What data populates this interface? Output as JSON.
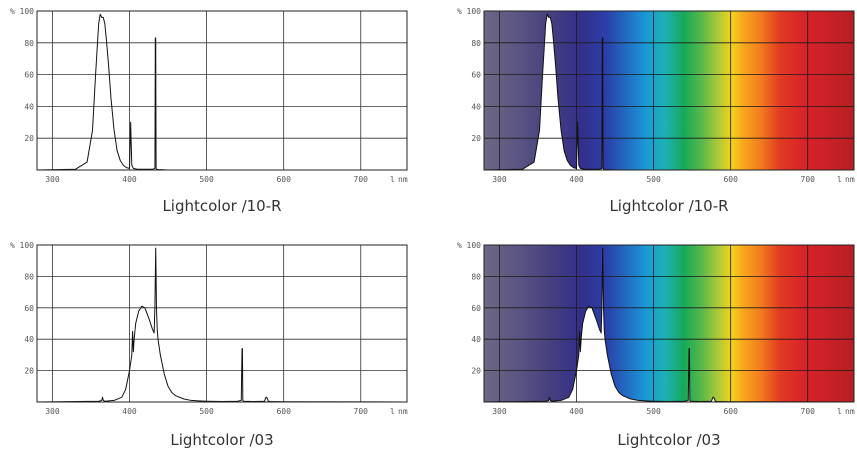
{
  "chart_data": [
    {
      "type": "line",
      "title": "Lightcolor /10-R",
      "y_unit": "%",
      "x_unit": "nm",
      "x_unit_prefix": "l",
      "xlim": [
        280,
        760
      ],
      "ylim": [
        0,
        100
      ],
      "x_ticks": [
        300,
        400,
        500,
        600,
        700
      ],
      "y_ticks": [
        20,
        40,
        60,
        80,
        100
      ],
      "background": "white",
      "grid": true,
      "series": [
        {
          "x": [
            280,
            330,
            345,
            352,
            356,
            360,
            362,
            364,
            366,
            368,
            370,
            373,
            376,
            380,
            384,
            388,
            392,
            396,
            400,
            401,
            401.5,
            402,
            403,
            405,
            410,
            430,
            433,
            433.5,
            434,
            434.5,
            435,
            437,
            450,
            760
          ],
          "y": [
            0,
            0.5,
            5,
            25,
            60,
            92,
            98,
            96,
            96,
            92,
            82,
            65,
            45,
            25,
            12,
            6,
            3,
            1.5,
            1,
            20,
            30,
            20,
            3,
            1,
            0.5,
            0.5,
            1,
            83,
            83,
            1,
            0.5,
            0.3,
            0,
            0
          ]
        }
      ]
    },
    {
      "type": "line",
      "title": "Lightcolor /10-R",
      "y_unit": "%",
      "x_unit": "nm",
      "x_unit_prefix": "l",
      "xlim": [
        280,
        760
      ],
      "ylim": [
        0,
        100
      ],
      "x_ticks": [
        300,
        400,
        500,
        600,
        700
      ],
      "y_ticks": [
        20,
        40,
        60,
        80,
        100
      ],
      "background": "spectrum",
      "grid": true,
      "series": [
        {
          "x": [
            280,
            330,
            345,
            352,
            356,
            360,
            362,
            364,
            366,
            368,
            370,
            373,
            376,
            380,
            384,
            388,
            392,
            396,
            400,
            401,
            401.5,
            402,
            403,
            405,
            410,
            430,
            433,
            433.5,
            434,
            434.5,
            435,
            437,
            450,
            760
          ],
          "y": [
            0,
            0.5,
            5,
            25,
            60,
            92,
            98,
            96,
            96,
            92,
            82,
            65,
            45,
            25,
            12,
            6,
            3,
            1.5,
            1,
            20,
            30,
            20,
            3,
            1,
            0.5,
            0.5,
            1,
            83,
            83,
            1,
            0.5,
            0.3,
            0,
            0
          ]
        }
      ]
    },
    {
      "type": "line",
      "title": "Lightcolor /03",
      "y_unit": "%",
      "x_unit": "nm",
      "x_unit_prefix": "l",
      "xlim": [
        280,
        760
      ],
      "ylim": [
        0,
        100
      ],
      "x_ticks": [
        300,
        400,
        500,
        600,
        700
      ],
      "y_ticks": [
        20,
        40,
        60,
        80,
        100
      ],
      "background": "white",
      "grid": true,
      "series": [
        {
          "x": [
            280,
            360,
            364,
            365,
            366,
            368,
            380,
            390,
            395,
            400,
            403,
            404,
            405,
            406,
            408,
            412,
            416,
            420,
            423,
            426,
            430,
            432,
            433,
            434,
            435,
            436,
            437,
            440,
            445,
            450,
            455,
            460,
            470,
            480,
            490,
            500,
            520,
            540,
            545,
            546,
            546.5,
            547,
            548,
            560,
            575,
            577,
            578,
            579,
            580,
            582,
            600,
            760
          ],
          "y": [
            0,
            0.5,
            1,
            3,
            1,
            0.5,
            1,
            3,
            8,
            20,
            30,
            45,
            32,
            40,
            50,
            58,
            61,
            60,
            56,
            52,
            46,
            44,
            62,
            98,
            60,
            46,
            40,
            30,
            18,
            10,
            6,
            4,
            2,
            1,
            0.7,
            0.5,
            0.3,
            0.5,
            1,
            34,
            34,
            1,
            0.5,
            0.3,
            0.5,
            3,
            3,
            2,
            0.5,
            0.3,
            0.2,
            0
          ]
        }
      ]
    },
    {
      "type": "line",
      "title": "Lightcolor /03",
      "y_unit": "%",
      "x_unit": "nm",
      "x_unit_prefix": "l",
      "xlim": [
        280,
        760
      ],
      "ylim": [
        0,
        100
      ],
      "x_ticks": [
        300,
        400,
        500,
        600,
        700
      ],
      "y_ticks": [
        20,
        40,
        60,
        80,
        100
      ],
      "background": "spectrum",
      "grid": true,
      "series": [
        {
          "x": [
            280,
            360,
            364,
            365,
            366,
            368,
            380,
            390,
            395,
            400,
            403,
            404,
            405,
            406,
            408,
            412,
            416,
            420,
            423,
            426,
            430,
            432,
            433,
            434,
            435,
            436,
            437,
            440,
            445,
            450,
            455,
            460,
            470,
            480,
            490,
            500,
            520,
            540,
            545,
            546,
            546.5,
            547,
            548,
            560,
            575,
            577,
            578,
            579,
            580,
            582,
            600,
            760
          ],
          "y": [
            0,
            0.5,
            1,
            3,
            1,
            0.5,
            1,
            3,
            8,
            20,
            30,
            45,
            32,
            40,
            50,
            58,
            61,
            60,
            56,
            52,
            46,
            44,
            62,
            98,
            60,
            46,
            40,
            30,
            18,
            10,
            6,
            4,
            2,
            1,
            0.7,
            0.5,
            0.3,
            0.5,
            1,
            34,
            34,
            1,
            0.5,
            0.3,
            0.5,
            3,
            3,
            2,
            0.5,
            0.3,
            0.2,
            0
          ]
        }
      ]
    }
  ]
}
